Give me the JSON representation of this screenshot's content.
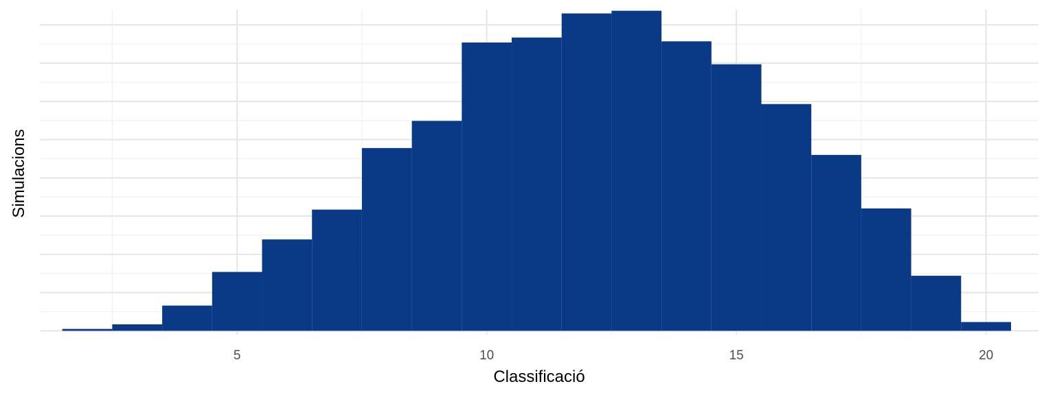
{
  "chart_data": {
    "type": "bar",
    "subtype": "histogram",
    "xlabel": "Classificació",
    "ylabel": "Simulacions",
    "bar_color": "#0a3a86",
    "xlim": [
      1.05,
      21.05
    ],
    "ylim": [
      -0.1,
      8.4
    ],
    "x_ticks": [
      5,
      10,
      15,
      20
    ],
    "x_tick_labels": [
      "5",
      "10",
      "15",
      "20"
    ],
    "y_tick_labels_shown": false,
    "grid": true,
    "bins": [
      {
        "x": 2,
        "value": 0.05
      },
      {
        "x": 3,
        "value": 0.17
      },
      {
        "x": 4,
        "value": 0.66
      },
      {
        "x": 5,
        "value": 1.54
      },
      {
        "x": 6,
        "value": 2.39
      },
      {
        "x": 7,
        "value": 3.17
      },
      {
        "x": 8,
        "value": 4.78
      },
      {
        "x": 9,
        "value": 5.49
      },
      {
        "x": 10,
        "value": 7.54
      },
      {
        "x": 11,
        "value": 7.67
      },
      {
        "x": 12,
        "value": 8.3
      },
      {
        "x": 13,
        "value": 8.37
      },
      {
        "x": 14,
        "value": 7.57
      },
      {
        "x": 15,
        "value": 6.97
      },
      {
        "x": 16,
        "value": 5.93
      },
      {
        "x": 17,
        "value": 4.6
      },
      {
        "x": 18,
        "value": 3.2
      },
      {
        "x": 19,
        "value": 1.44
      },
      {
        "x": 20,
        "value": 0.23
      }
    ]
  }
}
